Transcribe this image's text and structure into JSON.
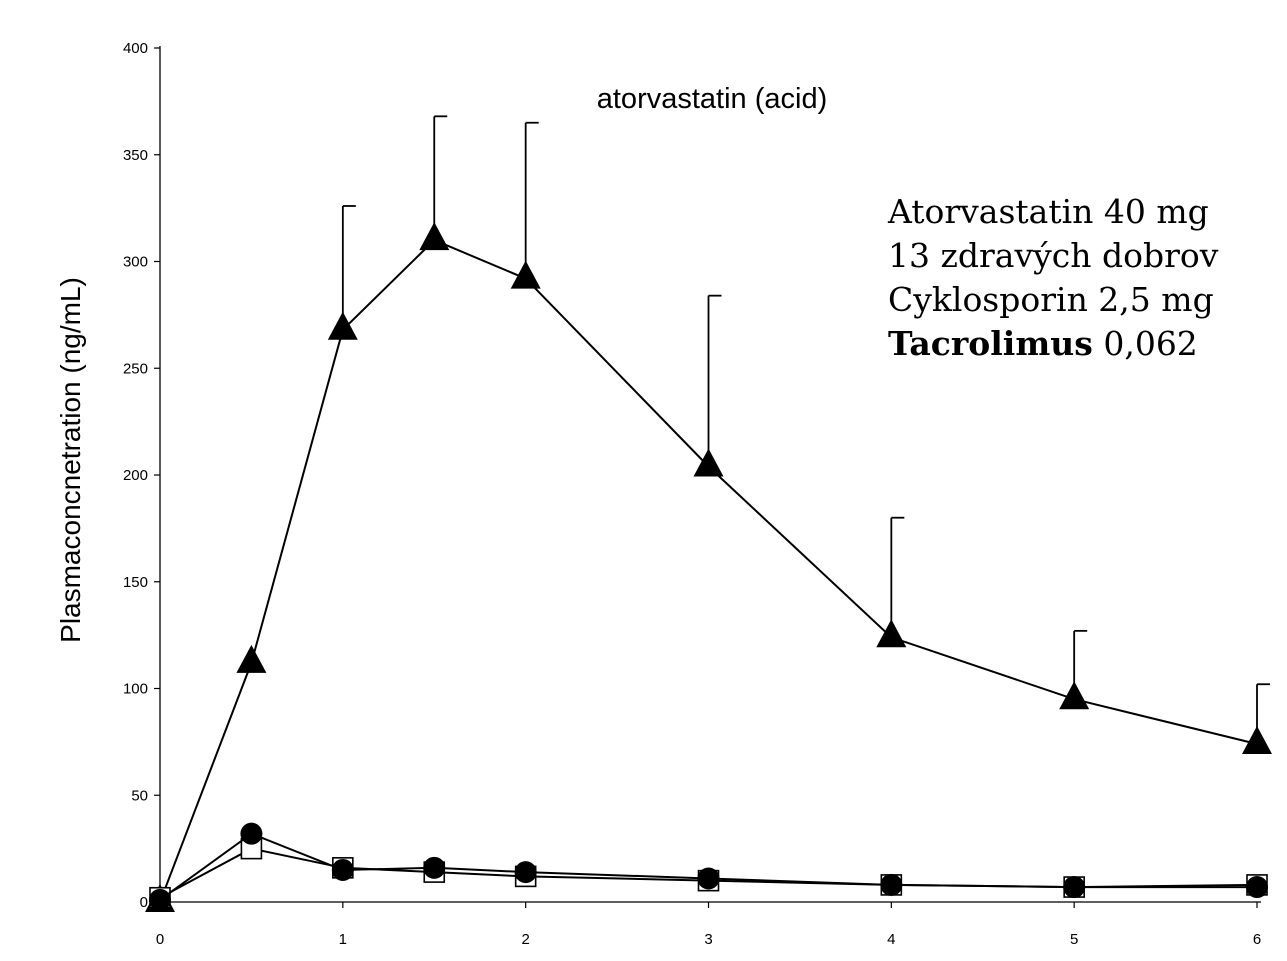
{
  "chart_data": {
    "type": "line",
    "title": "atorvastatin (acid)",
    "xlabel": "",
    "ylabel": "Plasmaconcnetration (ng/mL)",
    "xlim": [
      0,
      6
    ],
    "ylim": [
      0,
      400
    ],
    "x_ticks": [
      "0",
      "1",
      "2",
      "3",
      "4",
      "5",
      "6"
    ],
    "y_ticks": [
      "0",
      "50",
      "100",
      "150",
      "200",
      "250",
      "300",
      "350",
      "400"
    ],
    "grid": false,
    "series": [
      {
        "marker": "filled-triangle",
        "x": [
          0,
          0.5,
          1,
          1.5,
          2,
          3,
          4,
          5,
          6
        ],
        "y": [
          0,
          112,
          268,
          310,
          292,
          204,
          124,
          95,
          74
        ],
        "error_upper": [
          null,
          null,
          326,
          368,
          365,
          284,
          180,
          127,
          102
        ]
      },
      {
        "marker": "open-square",
        "x": [
          0,
          0.5,
          1,
          1.5,
          2,
          3,
          4,
          5,
          6
        ],
        "y": [
          2,
          25,
          16,
          14,
          12,
          10,
          8,
          7,
          8
        ]
      },
      {
        "marker": "filled-circle",
        "x": [
          0,
          0.5,
          1,
          1.5,
          2,
          3,
          4,
          5,
          6
        ],
        "y": [
          1,
          32,
          15,
          16,
          14,
          11,
          8,
          7,
          7
        ]
      }
    ]
  },
  "annotation": {
    "line1": "Atorvastatin 40 mg",
    "line2": "13 zdravých dobrov",
    "line3": "Cyklosporin 2,5 mg",
    "line4_bold": "Tacrolimus",
    "line4_rest": " 0,062"
  }
}
